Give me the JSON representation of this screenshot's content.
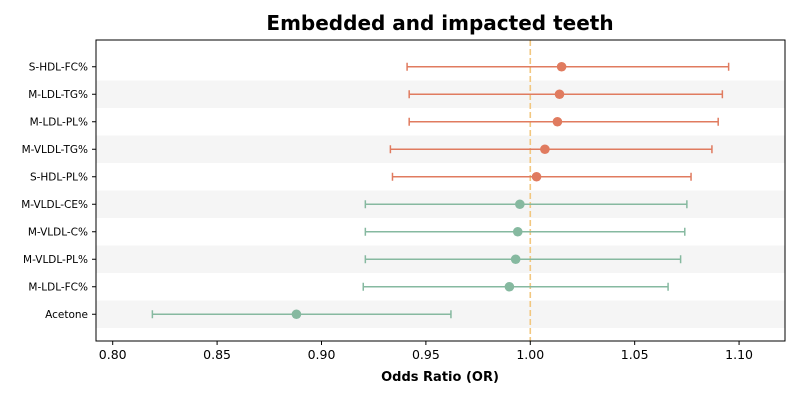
{
  "chart_data": {
    "type": "forest",
    "title": "Embedded and impacted teeth",
    "xlabel": "Odds Ratio (OR)",
    "ylabel": "",
    "xlim": [
      0.792,
      1.122
    ],
    "xticks": [
      "0.80",
      "0.85",
      "0.90",
      "0.95",
      "1.00",
      "1.05",
      "1.10"
    ],
    "reference_line": 1.0,
    "colors": {
      "positive": "#e07b5f",
      "negative": "#86b9a0",
      "reference": "#f2c77f",
      "band": "#f5f5f5"
    },
    "items": [
      {
        "label": "S-HDL-FC%",
        "or": 1.015,
        "lower": 0.941,
        "upper": 1.095
      },
      {
        "label": "M-LDL-TG%",
        "or": 1.014,
        "lower": 0.942,
        "upper": 1.092
      },
      {
        "label": "M-LDL-PL%",
        "or": 1.013,
        "lower": 0.942,
        "upper": 1.09
      },
      {
        "label": "M-VLDL-TG%",
        "or": 1.007,
        "lower": 0.933,
        "upper": 1.087
      },
      {
        "label": "S-HDL-PL%",
        "or": 1.003,
        "lower": 0.934,
        "upper": 1.077
      },
      {
        "label": "M-VLDL-CE%",
        "or": 0.995,
        "lower": 0.921,
        "upper": 1.075
      },
      {
        "label": "M-VLDL-C%",
        "or": 0.994,
        "lower": 0.921,
        "upper": 1.074
      },
      {
        "label": "M-VLDL-PL%",
        "or": 0.993,
        "lower": 0.921,
        "upper": 1.072
      },
      {
        "label": "M-LDL-FC%",
        "or": 0.99,
        "lower": 0.92,
        "upper": 1.066
      },
      {
        "label": "Acetone",
        "or": 0.888,
        "lower": 0.819,
        "upper": 0.962
      }
    ]
  }
}
